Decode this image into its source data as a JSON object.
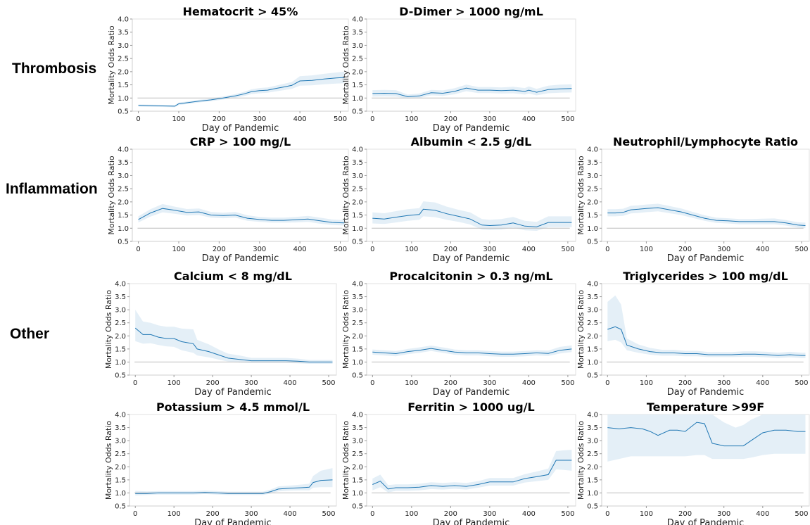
{
  "figure": {
    "row_labels": [
      "Thrombosis",
      "Inflammation",
      "Other"
    ],
    "line_color": "#1f77b4",
    "band_color": "#dbe9f4",
    "reference_line_color": "#bdbdbd"
  },
  "chart_data": [
    {
      "type": "line",
      "title": "Hematocrit > 45%",
      "xlabel": "Day of Pandemic",
      "ylabel": "Mortality Odds Ratio",
      "xlim": [
        -15,
        520
      ],
      "ylim": [
        0.5,
        4.0
      ],
      "xticks": [
        0,
        100,
        200,
        300,
        400,
        500
      ],
      "yticks": [
        0.5,
        1.0,
        1.5,
        2.0,
        2.5,
        3.0,
        3.5,
        4.0
      ],
      "reference_y": 1.0,
      "x": [
        0,
        30,
        60,
        90,
        100,
        120,
        150,
        180,
        210,
        240,
        260,
        280,
        300,
        320,
        340,
        360,
        380,
        400,
        430,
        460,
        490,
        510
      ],
      "y": [
        0.72,
        0.71,
        0.7,
        0.69,
        0.78,
        0.82,
        0.88,
        0.93,
        1.0,
        1.08,
        1.15,
        1.24,
        1.28,
        1.3,
        1.36,
        1.42,
        1.48,
        1.65,
        1.67,
        1.72,
        1.76,
        1.78
      ],
      "y_lower": [
        0.68,
        0.67,
        0.66,
        0.65,
        0.73,
        0.77,
        0.83,
        0.88,
        0.94,
        1.01,
        1.07,
        1.15,
        1.18,
        1.2,
        1.25,
        1.3,
        1.35,
        1.47,
        1.48,
        1.52,
        1.55,
        1.56
      ],
      "y_upper": [
        0.76,
        0.75,
        0.74,
        0.73,
        0.83,
        0.87,
        0.93,
        0.98,
        1.06,
        1.15,
        1.23,
        1.33,
        1.38,
        1.4,
        1.47,
        1.54,
        1.61,
        1.83,
        1.86,
        1.92,
        1.97,
        2.0
      ]
    },
    {
      "type": "line",
      "title": "D-Dimer > 1000 ng/mL",
      "xlabel": "Day of Pandemic",
      "ylabel": "Mortality Odds Ratio",
      "xlim": [
        -15,
        520
      ],
      "ylim": [
        0.5,
        4.0
      ],
      "xticks": [
        0,
        100,
        200,
        300,
        400,
        500
      ],
      "yticks": [
        0.5,
        1.0,
        1.5,
        2.0,
        2.5,
        3.0,
        3.5,
        4.0
      ],
      "reference_y": 1.0,
      "x": [
        0,
        30,
        60,
        90,
        120,
        150,
        180,
        210,
        240,
        270,
        300,
        330,
        360,
        390,
        400,
        420,
        450,
        480,
        510
      ],
      "y": [
        1.17,
        1.18,
        1.17,
        1.05,
        1.08,
        1.2,
        1.18,
        1.25,
        1.38,
        1.3,
        1.3,
        1.28,
        1.3,
        1.25,
        1.3,
        1.22,
        1.32,
        1.35,
        1.36
      ],
      "y_lower": [
        1.05,
        1.06,
        1.05,
        0.98,
        1.0,
        1.1,
        1.08,
        1.14,
        1.26,
        1.19,
        1.19,
        1.17,
        1.18,
        1.13,
        1.17,
        1.1,
        1.18,
        1.2,
        1.21
      ],
      "y_upper": [
        1.3,
        1.31,
        1.3,
        1.13,
        1.17,
        1.31,
        1.29,
        1.37,
        1.51,
        1.42,
        1.42,
        1.4,
        1.43,
        1.38,
        1.44,
        1.35,
        1.47,
        1.51,
        1.52
      ]
    },
    {
      "type": "line",
      "title": "CRP > 100 mg/L",
      "xlabel": "Day of Pandemic",
      "ylabel": "Mortality Odds Ratio",
      "xlim": [
        -15,
        520
      ],
      "ylim": [
        0.5,
        4.0
      ],
      "xticks": [
        0,
        100,
        200,
        300,
        400,
        500
      ],
      "yticks": [
        0.5,
        1.0,
        1.5,
        2.0,
        2.5,
        3.0,
        3.5,
        4.0
      ],
      "reference_y": 1.0,
      "x": [
        0,
        30,
        60,
        90,
        120,
        150,
        180,
        210,
        240,
        270,
        300,
        330,
        360,
        390,
        420,
        450,
        480,
        510
      ],
      "y": [
        1.33,
        1.58,
        1.75,
        1.68,
        1.6,
        1.62,
        1.5,
        1.48,
        1.5,
        1.38,
        1.33,
        1.3,
        1.3,
        1.32,
        1.35,
        1.28,
        1.22,
        1.2
      ],
      "y_lower": [
        1.22,
        1.44,
        1.6,
        1.55,
        1.48,
        1.5,
        1.4,
        1.38,
        1.4,
        1.28,
        1.24,
        1.21,
        1.21,
        1.22,
        1.24,
        1.17,
        1.12,
        1.1
      ],
      "y_upper": [
        1.45,
        1.72,
        1.92,
        1.82,
        1.73,
        1.75,
        1.62,
        1.59,
        1.62,
        1.49,
        1.43,
        1.4,
        1.4,
        1.43,
        1.47,
        1.4,
        1.33,
        1.31
      ]
    },
    {
      "type": "line",
      "title": "Albumin < 2.5 g/dL",
      "xlabel": "Day of Pandemic",
      "ylabel": "Mortality Odds Ratio",
      "xlim": [
        -15,
        520
      ],
      "ylim": [
        0.5,
        4.0
      ],
      "xticks": [
        0,
        100,
        200,
        300,
        400,
        500
      ],
      "yticks": [
        0.5,
        1.0,
        1.5,
        2.0,
        2.5,
        3.0,
        3.5,
        4.0
      ],
      "reference_y": 1.0,
      "x": [
        0,
        30,
        60,
        90,
        120,
        130,
        160,
        190,
        220,
        250,
        280,
        300,
        330,
        360,
        390,
        420,
        450,
        480,
        510
      ],
      "y": [
        1.38,
        1.35,
        1.42,
        1.48,
        1.52,
        1.72,
        1.68,
        1.55,
        1.45,
        1.35,
        1.12,
        1.1,
        1.12,
        1.2,
        1.08,
        1.05,
        1.22,
        1.22,
        1.22
      ],
      "y_lower": [
        1.18,
        1.16,
        1.22,
        1.28,
        1.32,
        1.45,
        1.42,
        1.32,
        1.24,
        1.14,
        0.95,
        0.93,
        0.95,
        1.02,
        0.92,
        0.9,
        1.04,
        1.04,
        1.04
      ],
      "y_upper": [
        1.6,
        1.57,
        1.65,
        1.72,
        1.76,
        2.02,
        1.98,
        1.82,
        1.7,
        1.6,
        1.35,
        1.32,
        1.35,
        1.43,
        1.28,
        1.24,
        1.45,
        1.45,
        1.45
      ]
    },
    {
      "type": "line",
      "title": "Neutrophil/Lymphocyte Ratio",
      "xlabel": "Day of Pandemic",
      "ylabel": "Mortality Odds Ratio",
      "xlim": [
        -15,
        520
      ],
      "ylim": [
        0.5,
        4.0
      ],
      "xticks": [
        0,
        100,
        200,
        300,
        400,
        500
      ],
      "yticks": [
        0.5,
        1.0,
        1.5,
        2.0,
        2.5,
        3.0,
        3.5,
        4.0
      ],
      "reference_y": 1.0,
      "x": [
        0,
        20,
        40,
        60,
        80,
        100,
        130,
        160,
        190,
        220,
        250,
        280,
        310,
        340,
        370,
        400,
        430,
        460,
        490,
        510
      ],
      "y": [
        1.58,
        1.58,
        1.6,
        1.7,
        1.72,
        1.75,
        1.78,
        1.7,
        1.62,
        1.5,
        1.38,
        1.3,
        1.28,
        1.25,
        1.25,
        1.25,
        1.25,
        1.2,
        1.12,
        1.1
      ],
      "y_lower": [
        1.45,
        1.45,
        1.47,
        1.56,
        1.58,
        1.61,
        1.64,
        1.57,
        1.5,
        1.39,
        1.28,
        1.2,
        1.18,
        1.15,
        1.15,
        1.15,
        1.15,
        1.1,
        1.02,
        1.0
      ],
      "y_upper": [
        1.72,
        1.72,
        1.74,
        1.85,
        1.87,
        1.9,
        1.93,
        1.84,
        1.75,
        1.62,
        1.49,
        1.4,
        1.38,
        1.35,
        1.35,
        1.36,
        1.37,
        1.31,
        1.23,
        1.21
      ]
    },
    {
      "type": "line",
      "title": "Calcium < 8 mg/dL",
      "xlabel": "Day of Pandemic",
      "ylabel": "Mortality Odds Ratio",
      "xlim": [
        -15,
        520
      ],
      "ylim": [
        0.5,
        4.0
      ],
      "xticks": [
        0,
        100,
        200,
        300,
        400,
        500
      ],
      "yticks": [
        0.5,
        1.0,
        1.5,
        2.0,
        2.5,
        3.0,
        3.5,
        4.0
      ],
      "reference_y": 1.0,
      "x": [
        0,
        20,
        40,
        60,
        80,
        100,
        120,
        150,
        160,
        190,
        220,
        240,
        270,
        300,
        330,
        360,
        390,
        420,
        450,
        480,
        510
      ],
      "y": [
        2.3,
        2.05,
        2.05,
        1.95,
        1.9,
        1.9,
        1.78,
        1.7,
        1.5,
        1.4,
        1.25,
        1.15,
        1.1,
        1.05,
        1.05,
        1.05,
        1.05,
        1.03,
        1.0,
        1.0,
        1.0
      ],
      "y_lower": [
        1.8,
        1.7,
        1.72,
        1.65,
        1.6,
        1.58,
        1.45,
        1.35,
        1.25,
        1.18,
        1.08,
        1.02,
        0.98,
        0.96,
        0.96,
        0.96,
        0.96,
        0.95,
        0.93,
        0.93,
        0.93
      ],
      "y_upper": [
        3.0,
        2.55,
        2.5,
        2.4,
        2.35,
        2.35,
        2.28,
        2.25,
        1.85,
        1.68,
        1.45,
        1.32,
        1.25,
        1.16,
        1.16,
        1.16,
        1.16,
        1.13,
        1.08,
        1.08,
        1.08
      ]
    },
    {
      "type": "line",
      "title": "Procalcitonin > 0.3 ng/mL",
      "xlabel": "Day of Pandemic",
      "ylabel": "Mortality Odds Ratio",
      "xlim": [
        -15,
        520
      ],
      "ylim": [
        0.5,
        4.0
      ],
      "xticks": [
        0,
        100,
        200,
        300,
        400,
        500
      ],
      "yticks": [
        0.5,
        1.0,
        1.5,
        2.0,
        2.5,
        3.0,
        3.5,
        4.0
      ],
      "reference_y": 1.0,
      "x": [
        0,
        30,
        60,
        90,
        120,
        150,
        180,
        210,
        240,
        270,
        300,
        330,
        360,
        390,
        420,
        450,
        480,
        510
      ],
      "y": [
        1.38,
        1.35,
        1.32,
        1.4,
        1.45,
        1.52,
        1.45,
        1.38,
        1.35,
        1.35,
        1.32,
        1.3,
        1.3,
        1.32,
        1.35,
        1.33,
        1.45,
        1.5
      ],
      "y_lower": [
        1.28,
        1.25,
        1.22,
        1.3,
        1.35,
        1.42,
        1.35,
        1.28,
        1.25,
        1.25,
        1.22,
        1.2,
        1.2,
        1.22,
        1.25,
        1.23,
        1.33,
        1.38
      ],
      "y_upper": [
        1.48,
        1.45,
        1.42,
        1.5,
        1.56,
        1.63,
        1.56,
        1.48,
        1.45,
        1.45,
        1.42,
        1.4,
        1.4,
        1.42,
        1.45,
        1.44,
        1.58,
        1.64
      ]
    },
    {
      "type": "line",
      "title": "Triglycerides > 100 mg/dL",
      "xlabel": "Day of Pandemic",
      "ylabel": "Mortality Odds Ratio",
      "xlim": [
        -15,
        520
      ],
      "ylim": [
        0.5,
        4.0
      ],
      "xticks": [
        0,
        100,
        200,
        300,
        400,
        500
      ],
      "yticks": [
        0.5,
        1.0,
        1.5,
        2.0,
        2.5,
        3.0,
        3.5,
        4.0
      ],
      "reference_y": 1.0,
      "x": [
        0,
        20,
        35,
        50,
        80,
        110,
        140,
        170,
        200,
        230,
        260,
        290,
        320,
        350,
        380,
        410,
        440,
        470,
        500,
        510
      ],
      "y": [
        2.25,
        2.35,
        2.25,
        1.65,
        1.5,
        1.4,
        1.35,
        1.35,
        1.32,
        1.32,
        1.28,
        1.28,
        1.28,
        1.3,
        1.3,
        1.28,
        1.25,
        1.28,
        1.25,
        1.25
      ],
      "y_lower": [
        1.8,
        1.85,
        1.75,
        1.45,
        1.35,
        1.28,
        1.24,
        1.24,
        1.22,
        1.22,
        1.19,
        1.19,
        1.19,
        1.2,
        1.2,
        1.18,
        1.15,
        1.18,
        1.15,
        1.15
      ],
      "y_upper": [
        3.3,
        3.55,
        3.2,
        1.9,
        1.67,
        1.54,
        1.47,
        1.47,
        1.43,
        1.43,
        1.38,
        1.38,
        1.38,
        1.41,
        1.41,
        1.39,
        1.36,
        1.39,
        1.36,
        1.36
      ]
    },
    {
      "type": "line",
      "title": "Potassium > 4.5 mmol/L",
      "xlabel": "Day of Pandemic",
      "ylabel": "Mortality Odds Ratio",
      "xlim": [
        -15,
        520
      ],
      "ylim": [
        0.5,
        4.0
      ],
      "xticks": [
        0,
        100,
        200,
        300,
        400,
        500
      ],
      "yticks": [
        0.5,
        1.0,
        1.5,
        2.0,
        2.5,
        3.0,
        3.5,
        4.0
      ],
      "reference_y": 1.0,
      "x": [
        0,
        30,
        60,
        90,
        120,
        150,
        180,
        210,
        240,
        270,
        300,
        330,
        350,
        370,
        400,
        430,
        450,
        460,
        480,
        510
      ],
      "y": [
        0.98,
        0.98,
        1.0,
        1.0,
        1.0,
        1.0,
        1.02,
        1.0,
        0.98,
        0.98,
        0.98,
        0.98,
        1.05,
        1.15,
        1.18,
        1.2,
        1.22,
        1.4,
        1.48,
        1.5
      ],
      "y_lower": [
        0.9,
        0.92,
        0.94,
        0.94,
        0.94,
        0.94,
        0.96,
        0.94,
        0.92,
        0.92,
        0.92,
        0.92,
        0.98,
        1.06,
        1.09,
        1.1,
        1.1,
        1.2,
        1.22,
        1.22
      ],
      "y_upper": [
        1.08,
        1.06,
        1.07,
        1.07,
        1.07,
        1.07,
        1.09,
        1.07,
        1.05,
        1.05,
        1.05,
        1.05,
        1.13,
        1.25,
        1.28,
        1.32,
        1.35,
        1.65,
        1.85,
        1.95
      ]
    },
    {
      "type": "line",
      "title": "Ferritin > 1000 ug/L",
      "xlabel": "Day of Pandemic",
      "ylabel": "Mortality Odds Ratio",
      "xlim": [
        -15,
        520
      ],
      "ylim": [
        0.5,
        4.0
      ],
      "xticks": [
        0,
        100,
        200,
        300,
        400,
        500
      ],
      "yticks": [
        0.5,
        1.0,
        1.5,
        2.0,
        2.5,
        3.0,
        3.5,
        4.0
      ],
      "reference_y": 1.0,
      "x": [
        0,
        20,
        40,
        60,
        90,
        120,
        150,
        180,
        210,
        240,
        270,
        300,
        330,
        360,
        390,
        420,
        450,
        470,
        490,
        510
      ],
      "y": [
        1.32,
        1.45,
        1.15,
        1.2,
        1.2,
        1.22,
        1.28,
        1.25,
        1.28,
        1.25,
        1.32,
        1.42,
        1.42,
        1.42,
        1.55,
        1.62,
        1.7,
        2.25,
        2.25,
        2.25
      ],
      "y_lower": [
        1.1,
        1.22,
        1.02,
        1.08,
        1.08,
        1.1,
        1.15,
        1.13,
        1.16,
        1.13,
        1.2,
        1.28,
        1.28,
        1.28,
        1.4,
        1.45,
        1.5,
        1.9,
        1.88,
        1.85
      ],
      "y_upper": [
        1.55,
        1.7,
        1.3,
        1.33,
        1.33,
        1.35,
        1.41,
        1.38,
        1.41,
        1.38,
        1.45,
        1.57,
        1.57,
        1.57,
        1.72,
        1.82,
        1.93,
        2.6,
        2.63,
        2.65
      ]
    },
    {
      "type": "line",
      "title": "Temperature >99F",
      "xlabel": "Day of Pandemic",
      "ylabel": "Mortality Odds Ratio",
      "xlim": [
        -15,
        520
      ],
      "ylim": [
        0.5,
        4.0
      ],
      "xticks": [
        0,
        100,
        200,
        300,
        400,
        500
      ],
      "yticks": [
        0.5,
        1.0,
        1.5,
        2.0,
        2.5,
        3.0,
        3.5,
        4.0
      ],
      "reference_y": 1.0,
      "x": [
        0,
        30,
        60,
        90,
        110,
        130,
        160,
        180,
        200,
        230,
        250,
        270,
        300,
        330,
        350,
        370,
        400,
        430,
        460,
        490,
        510
      ],
      "y": [
        3.5,
        3.45,
        3.5,
        3.45,
        3.35,
        3.2,
        3.4,
        3.4,
        3.35,
        3.7,
        3.65,
        2.9,
        2.8,
        2.8,
        2.8,
        3.0,
        3.3,
        3.4,
        3.4,
        3.35,
        3.35
      ],
      "y_lower": [
        2.2,
        2.3,
        2.4,
        2.4,
        2.4,
        2.4,
        2.4,
        2.4,
        2.4,
        2.45,
        2.45,
        2.3,
        2.3,
        2.3,
        2.3,
        2.35,
        2.45,
        2.5,
        2.5,
        2.5,
        2.5
      ],
      "y_upper": [
        4.0,
        4.0,
        4.0,
        4.0,
        4.0,
        4.0,
        4.0,
        4.0,
        4.0,
        4.0,
        4.0,
        4.0,
        3.7,
        3.5,
        3.6,
        3.8,
        4.0,
        4.0,
        4.0,
        4.0,
        4.0
      ]
    }
  ]
}
